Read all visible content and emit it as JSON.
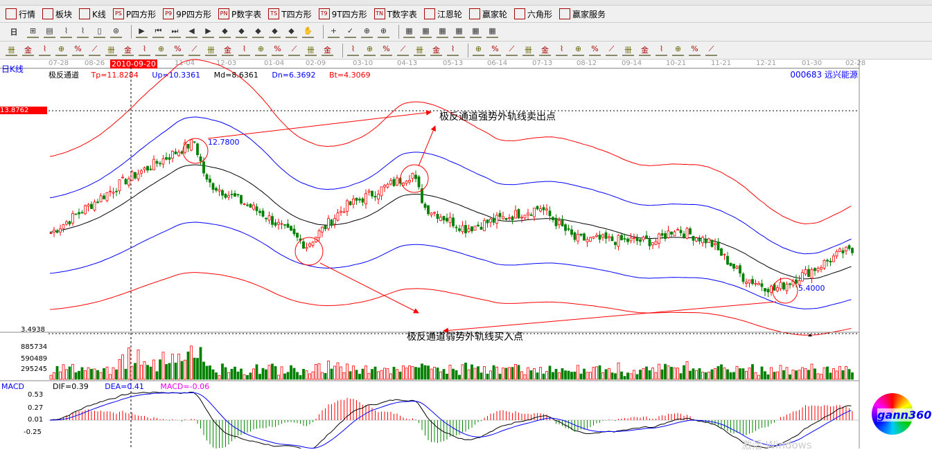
{
  "menu": [
    {
      "icon": "grid-icon",
      "label": "行情"
    },
    {
      "icon": "blocks-icon",
      "label": "板块"
    },
    {
      "icon": "kline-icon",
      "label": "K线"
    },
    {
      "icon": "ps-icon",
      "tag": "PS",
      "label": "P四方形"
    },
    {
      "icon": "p9-icon",
      "tag": "P9",
      "label": "9P四方形"
    },
    {
      "icon": "pn-icon",
      "tag": "PN",
      "label": "P数字表"
    },
    {
      "icon": "ts-icon",
      "tag": "TS",
      "label": "T四方形"
    },
    {
      "icon": "t9-icon",
      "tag": "T9",
      "label": "9T四方形"
    },
    {
      "icon": "tn-icon",
      "tag": "TN",
      "label": "T数字表"
    },
    {
      "icon": "gann-wheel-icon",
      "label": "江恩轮"
    },
    {
      "icon": "winner-wheel-icon",
      "label": "赢家轮"
    },
    {
      "icon": "hexagon-icon",
      "label": "六角形"
    },
    {
      "icon": "dollar-icon",
      "label": "赢家服务"
    }
  ],
  "toolbar": {
    "period": "日"
  },
  "period_label": "日K线",
  "dates": [
    "07-28",
    "08-26",
    "11-04",
    "12-03",
    "01-04",
    "02-09",
    "03-10",
    "04-13",
    "05-13",
    "06-14",
    "07-13",
    "08-12",
    "09-14",
    "10-21",
    "11-21",
    "12-21",
    "01-30",
    "02-28"
  ],
  "cursor_date": "2010-09-20",
  "indicator": {
    "name": "极反通道",
    "tp": "Tp=11.8284",
    "up": "Up=10.3361",
    "md": "Md=8.6361",
    "dn": "Dn=6.3692",
    "bt": "Bt=4.3069"
  },
  "stock": {
    "code": "000683",
    "name": "远兴能源"
  },
  "price_axis": {
    "top": "13.8762",
    "bottom": "3.4938"
  },
  "annotations": {
    "sell": "极反通道强势外轨线卖出点",
    "buy": "极反通道弱势外轨线买入点",
    "high": "12.7800",
    "low": "5.4000"
  },
  "volume_axis": [
    "885734",
    "590489",
    "295245"
  ],
  "macd": {
    "title": "MACD",
    "dif": "DIF=0.39",
    "dea": "DEA=0.41",
    "macd": "MACD=-0.06",
    "ticks": [
      "0.53",
      "0.27",
      "0.01",
      "-0.25"
    ]
  },
  "logo": "gann360",
  "watermark": "激活 Windows",
  "colors": {
    "up": "#ff0000",
    "down": "#008000",
    "md": "#000000",
    "band_inner": "#0000ff",
    "band_outer": "#ff0000",
    "macd_dea": "#0000ff"
  },
  "chart_data": {
    "type": "candlestick",
    "price_range": [
      3.4938,
      13.8762
    ],
    "close_keypoints": [
      [
        0,
        8.1
      ],
      [
        24,
        10.6
      ],
      [
        46,
        12.4
      ],
      [
        50,
        10.5
      ],
      [
        68,
        9.0
      ],
      [
        82,
        7.5
      ],
      [
        94,
        9.3
      ],
      [
        116,
        10.9
      ],
      [
        120,
        9.3
      ],
      [
        133,
        8.3
      ],
      [
        157,
        9.3
      ],
      [
        168,
        7.8
      ],
      [
        194,
        7.7
      ],
      [
        200,
        8.3
      ],
      [
        211,
        7.7
      ],
      [
        222,
        6.0
      ],
      [
        232,
        5.4
      ],
      [
        246,
        6.5
      ],
      [
        254,
        7.2
      ]
    ]
  }
}
